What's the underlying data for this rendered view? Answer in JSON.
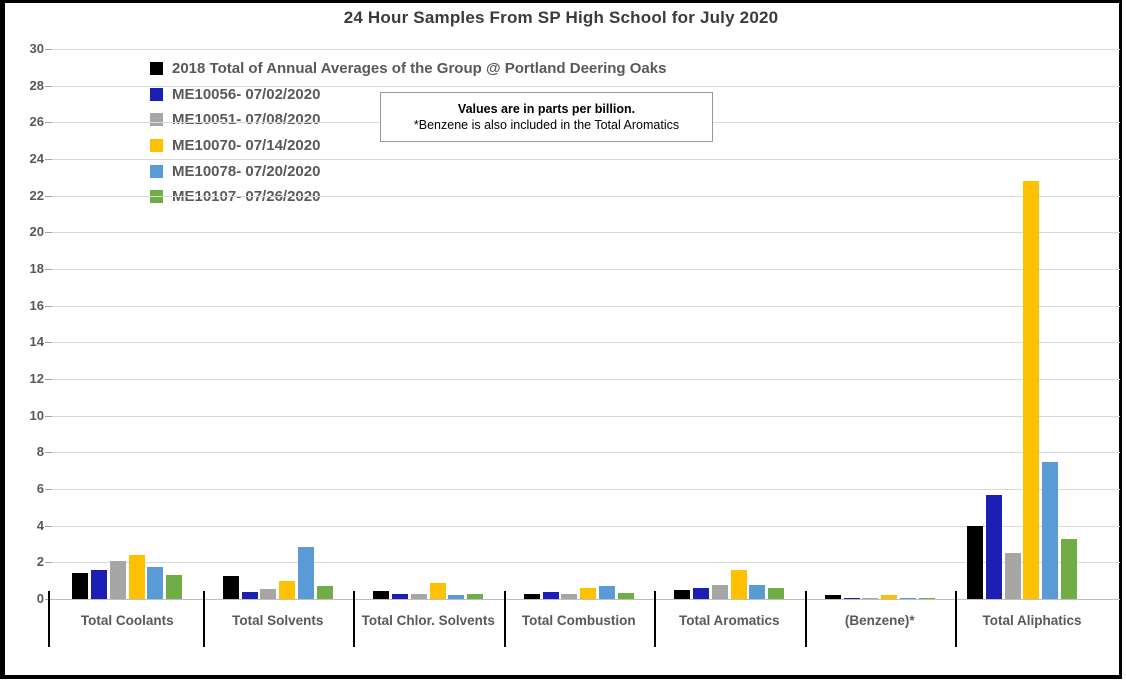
{
  "title": "24 Hour Samples From SP High School for July 2020",
  "note_box": {
    "line1": "Values are in parts per billion.",
    "line2": "*Benzene is also included in the Total Aromatics"
  },
  "chart_data": {
    "type": "bar",
    "title": "24 Hour Samples From SP High School for July 2020",
    "categories": [
      "Total Coolants",
      "Total Solvents",
      "Total Chlor. Solvents",
      "Total Combustion",
      "Total Aromatics",
      "(Benzene)*",
      "Total Aliphatics"
    ],
    "series": [
      {
        "name": "2018 Total of Annual Averages of the Group @ Portland Deering Oaks",
        "color": "#000000",
        "values": [
          1.4,
          1.25,
          0.45,
          0.3,
          0.5,
          0.2,
          4.0
        ]
      },
      {
        "name": "ME10056- 07/02/2020",
        "color": "#1C1FB3",
        "values": [
          1.6,
          0.4,
          0.25,
          0.4,
          0.6,
          0.07,
          5.7
        ]
      },
      {
        "name": "ME10051- 07/08/2020",
        "color": "#A6A6A6",
        "values": [
          2.1,
          0.55,
          0.3,
          0.3,
          0.75,
          0.08,
          2.5
        ]
      },
      {
        "name": "ME10070- 07/14/2020",
        "color": "#FFC000",
        "values": [
          2.4,
          1.0,
          0.85,
          0.6,
          1.6,
          0.2,
          22.8
        ]
      },
      {
        "name": "ME10078- 07/20/2020",
        "color": "#5B9BD5",
        "values": [
          1.75,
          2.85,
          0.2,
          0.7,
          0.75,
          0.08,
          7.5
        ]
      },
      {
        "name": "ME10107- 07/26/2020",
        "color": "#70AD47",
        "values": [
          1.3,
          0.7,
          0.25,
          0.35,
          0.6,
          0.08,
          3.3
        ]
      }
    ],
    "xlabel": "",
    "ylabel": "",
    "ylim": [
      0,
      30
    ],
    "ytick_step": 2,
    "grid": true,
    "legend_position": "top-left",
    "units": "parts per billion"
  },
  "colors": {
    "gridline": "#D9D9D9",
    "baseline": "#BFBFBF",
    "tick": "#A6A6A6",
    "axis_text": "#595959",
    "title_text": "#3B3B3B",
    "note_border": "#999999",
    "separator": "#000000",
    "frame_border": "#000000",
    "background": "#FFFFFF"
  }
}
